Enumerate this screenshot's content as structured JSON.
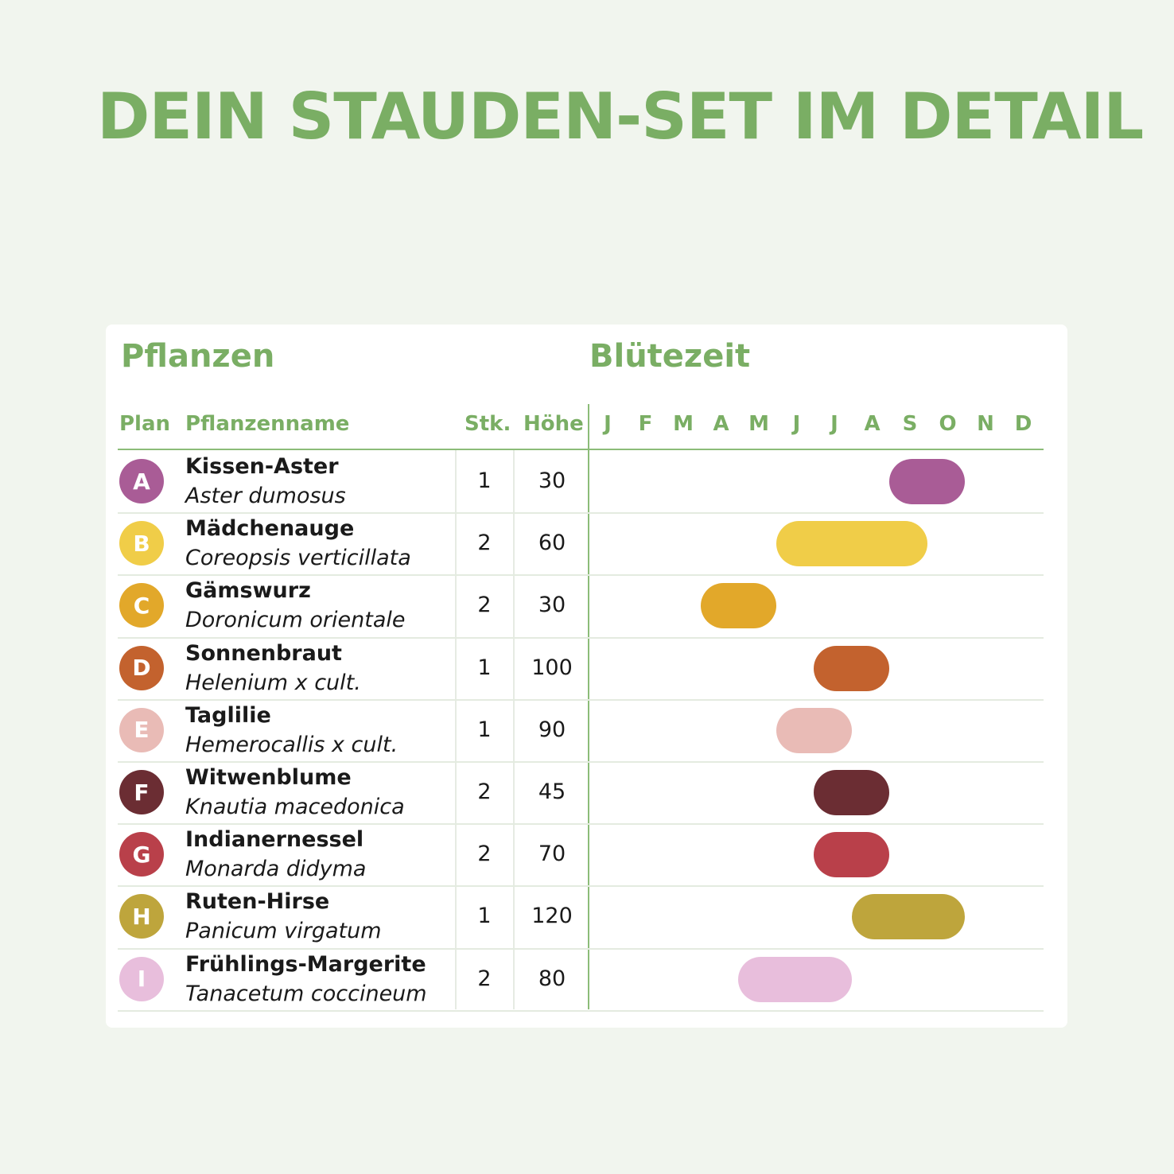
{
  "title": "DEIN STAUDEN-SET IM DETAIL",
  "headings": {
    "plants": "Pflanzen",
    "bloom": "Blütezeit"
  },
  "columns": {
    "plan": "Plan",
    "name": "Pflanzenname",
    "count": "Stk.",
    "height": "Höhe"
  },
  "months": [
    "J",
    "F",
    "M",
    "A",
    "M",
    "J",
    "J",
    "A",
    "S",
    "O",
    "N",
    "D"
  ],
  "chart_data": {
    "type": "gantt",
    "x_axis": "months",
    "rows": [
      {
        "plan": "A",
        "name": "Kissen-Aster",
        "latin": "Aster dumosus",
        "count": "1",
        "height": "30",
        "color": "#a95c96",
        "start": 8,
        "end": 10
      },
      {
        "plan": "B",
        "name": "Mädchenauge",
        "latin": "Coreopsis verticillata",
        "count": "2",
        "height": "60",
        "color": "#f0cd48",
        "start": 5,
        "end": 9
      },
      {
        "plan": "C",
        "name": "Gämswurz",
        "latin": "Doronicum orientale",
        "count": "2",
        "height": "30",
        "color": "#e2a82a",
        "start": 3,
        "end": 5
      },
      {
        "plan": "D",
        "name": "Sonnenbraut",
        "latin": "Helenium x cult.",
        "count": "1",
        "height": "100",
        "color": "#c3622e",
        "start": 6,
        "end": 8
      },
      {
        "plan": "E",
        "name": "Taglilie",
        "latin": "Hemerocallis x cult.",
        "count": "1",
        "height": "90",
        "color": "#e9bbb6",
        "start": 5,
        "end": 7
      },
      {
        "plan": "F",
        "name": "Witwenblume",
        "latin": "Knautia macedonica",
        "count": "2",
        "height": "45",
        "color": "#6b2d33",
        "start": 6,
        "end": 8
      },
      {
        "plan": "G",
        "name": "Indianernessel",
        "latin": "Monarda didyma",
        "count": "2",
        "height": "70",
        "color": "#b9404a",
        "start": 6,
        "end": 8
      },
      {
        "plan": "H",
        "name": "Ruten-Hirse",
        "latin": "Panicum virgatum",
        "count": "1",
        "height": "120",
        "color": "#bea53c",
        "start": 7,
        "end": 10
      },
      {
        "plan": "I",
        "name": "Frühlings-Margerite",
        "latin": "Tanacetum coccineum",
        "count": "2",
        "height": "80",
        "color": "#e8bedc",
        "start": 4,
        "end": 7
      }
    ]
  }
}
